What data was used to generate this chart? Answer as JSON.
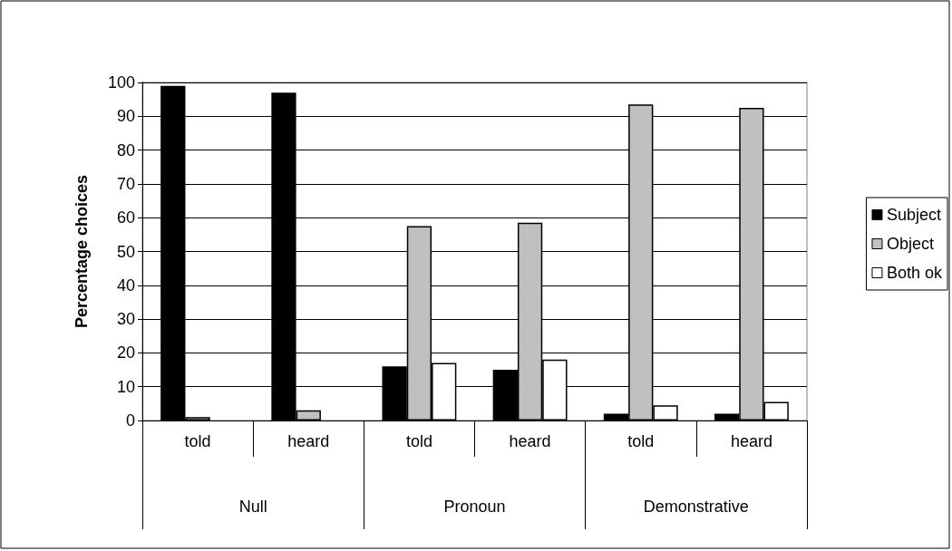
{
  "chart_data": {
    "type": "bar",
    "ylabel": "Percentage choices",
    "categories": [
      "told",
      "heard",
      "told",
      "heard",
      "told",
      "heard"
    ],
    "annotations": [
      "Null",
      "Pronoun",
      "Demonstrative"
    ],
    "series": [
      {
        "name": "Subject",
        "color": "#000000",
        "values": [
          99,
          97,
          16,
          15,
          2,
          2
        ]
      },
      {
        "name": "Object",
        "color": "#c0c0c0",
        "values": [
          1,
          3,
          57.5,
          58.5,
          93.5,
          92.5
        ]
      },
      {
        "name": "Both ok",
        "color": "#ffffff",
        "values": [
          null,
          null,
          17,
          18,
          4.5,
          5.5
        ]
      }
    ],
    "ylim": [
      0,
      100
    ],
    "yticks": [
      0,
      10,
      20,
      30,
      40,
      50,
      60,
      70,
      80,
      90,
      100
    ],
    "grid": "y",
    "legend": "right"
  }
}
